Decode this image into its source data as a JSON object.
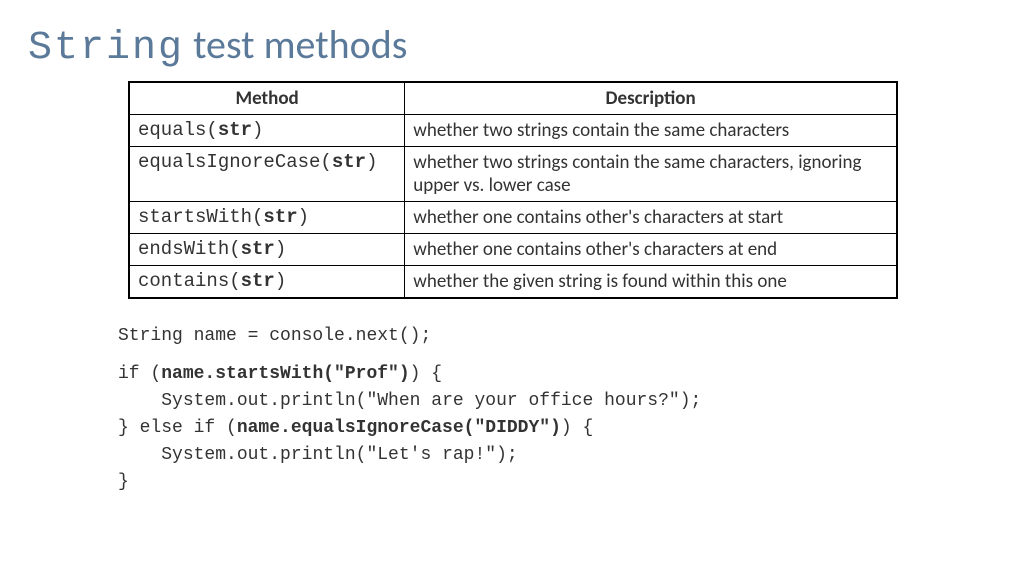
{
  "title": {
    "mono_part": "String",
    "rest": " test methods"
  },
  "table": {
    "headers": [
      "Method",
      "Description"
    ],
    "col_widths": [
      "260px",
      "510px"
    ],
    "rows": [
      {
        "method_pre": "equals(",
        "method_param": "str",
        "method_post": ")",
        "desc": "whether two strings contain the same characters"
      },
      {
        "method_pre": "equalsIgnoreCase(",
        "method_param": "str",
        "method_post": ")",
        "desc": "whether two strings contain the same characters, ignoring upper vs. lower case"
      },
      {
        "method_pre": "startsWith(",
        "method_param": "str",
        "method_post": ")",
        "desc": "whether one contains other's characters at start"
      },
      {
        "method_pre": "endsWith(",
        "method_param": "str",
        "method_post": ")",
        "desc": "whether one contains other's characters at end"
      },
      {
        "method_pre": "contains(",
        "method_param": "str",
        "method_post": ")",
        "desc": "whether the given string is found within this one"
      }
    ]
  },
  "code": {
    "lines": [
      {
        "indent": "",
        "segs": [
          {
            "t": "String name = console.next();",
            "b": false
          }
        ]
      },
      {
        "indent": "",
        "segs": []
      },
      {
        "indent": "",
        "segs": [
          {
            "t": "if (",
            "b": false
          },
          {
            "t": "name.startsWith(\"Prof\")",
            "b": true
          },
          {
            "t": ") {",
            "b": false
          }
        ]
      },
      {
        "indent": "    ",
        "segs": [
          {
            "t": "System.out.println(\"When are your office hours?\");",
            "b": false
          }
        ]
      },
      {
        "indent": "",
        "segs": [
          {
            "t": "} else if (",
            "b": false
          },
          {
            "t": "name.equalsIgnoreCase(\"DIDDY\")",
            "b": true
          },
          {
            "t": ") {",
            "b": false
          }
        ]
      },
      {
        "indent": "    ",
        "segs": [
          {
            "t": "System.out.println(\"Let's rap!\");",
            "b": false
          }
        ]
      },
      {
        "indent": "",
        "segs": [
          {
            "t": "}",
            "b": false
          }
        ]
      }
    ]
  },
  "colors": {
    "title": "#5b7a99",
    "text": "#333333",
    "border": "#000000",
    "background": "#ffffff"
  }
}
